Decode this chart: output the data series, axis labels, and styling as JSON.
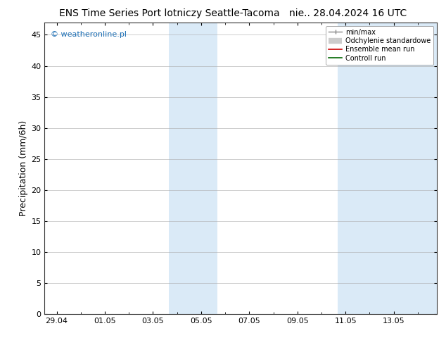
{
  "title_left": "ENS Time Series Port lotniczy Seattle-Tacoma",
  "title_right": "nie.. 28.04.2024 16 UTC",
  "ylabel": "Precipitation (mm/6h)",
  "ylim": [
    0,
    47
  ],
  "yticks": [
    0,
    5,
    10,
    15,
    20,
    25,
    30,
    35,
    40,
    45
  ],
  "xtick_positions": [
    0,
    2,
    4,
    6,
    8,
    10,
    12,
    14
  ],
  "xtick_labels": [
    "29.04",
    "01.05",
    "03.05",
    "05.05",
    "07.05",
    "09.05",
    "11.05",
    "13.05"
  ],
  "xlim": [
    -0.5,
    15.8
  ],
  "shaded_bands": [
    {
      "xstart": 4.67,
      "xend": 6.67
    },
    {
      "xstart": 11.67,
      "xend": 15.8
    }
  ],
  "shade_color": "#daeaf7",
  "bg_color": "#ffffff",
  "legend_labels": [
    "min/max",
    "Odchylenie standardowe",
    "Ensemble mean run",
    "Controll run"
  ],
  "legend_colors": [
    "#999999",
    "#cccccc",
    "#cc0000",
    "#006600"
  ],
  "watermark": "weatheronline.pl",
  "watermark_color": "#1a6eb5",
  "grid_color": "#aaaaaa",
  "axis_color": "#333333",
  "title_fontsize": 10,
  "tick_fontsize": 8,
  "ylabel_fontsize": 9,
  "legend_fontsize": 7
}
